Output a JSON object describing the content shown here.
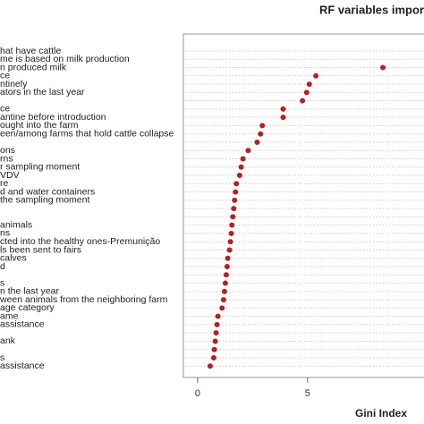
{
  "chart_data": {
    "type": "dot",
    "title": "RF variables impor",
    "x_label": "Gini Index",
    "categories": [
      "hat have cattle",
      "me is based on milk production",
      "n produced milk",
      "ce",
      "ntinely",
      "ators in the last year",
      null,
      "ce",
      "antine before introduction",
      "ought into the farm",
      "een/among farms that hold cattle collapse",
      null,
      "ons",
      "rns",
      "r sampling moment",
      "VDV",
      "re",
      "d and water containers",
      "the sampling moment",
      null,
      null,
      "animals",
      "ns",
      "cted into the healthy ones-Premunição",
      "ls been sent to fairs",
      "calves",
      "d",
      null,
      "s",
      "n the last year",
      "ween animals from the neighboring farm",
      "age category",
      "ame",
      "assistance",
      null,
      "ank",
      null,
      "s",
      "assistance"
    ],
    "values": [
      null,
      null,
      8.43,
      5.38,
      5.08,
      4.96,
      4.77,
      3.89,
      3.89,
      2.94,
      2.86,
      2.71,
      2.3,
      2.06,
      1.98,
      1.91,
      1.76,
      1.72,
      1.68,
      1.64,
      1.6,
      1.56,
      1.53,
      1.49,
      1.45,
      1.37,
      1.34,
      1.3,
      1.26,
      1.22,
      1.18,
      1.11,
      0.92,
      0.88,
      0.84,
      0.8,
      0.76,
      0.73,
      0.57
    ],
    "color": "#b22222",
    "xlim": [
      -0.65,
      10.3
    ],
    "xticks": [
      0,
      5
    ],
    "grid": true
  }
}
